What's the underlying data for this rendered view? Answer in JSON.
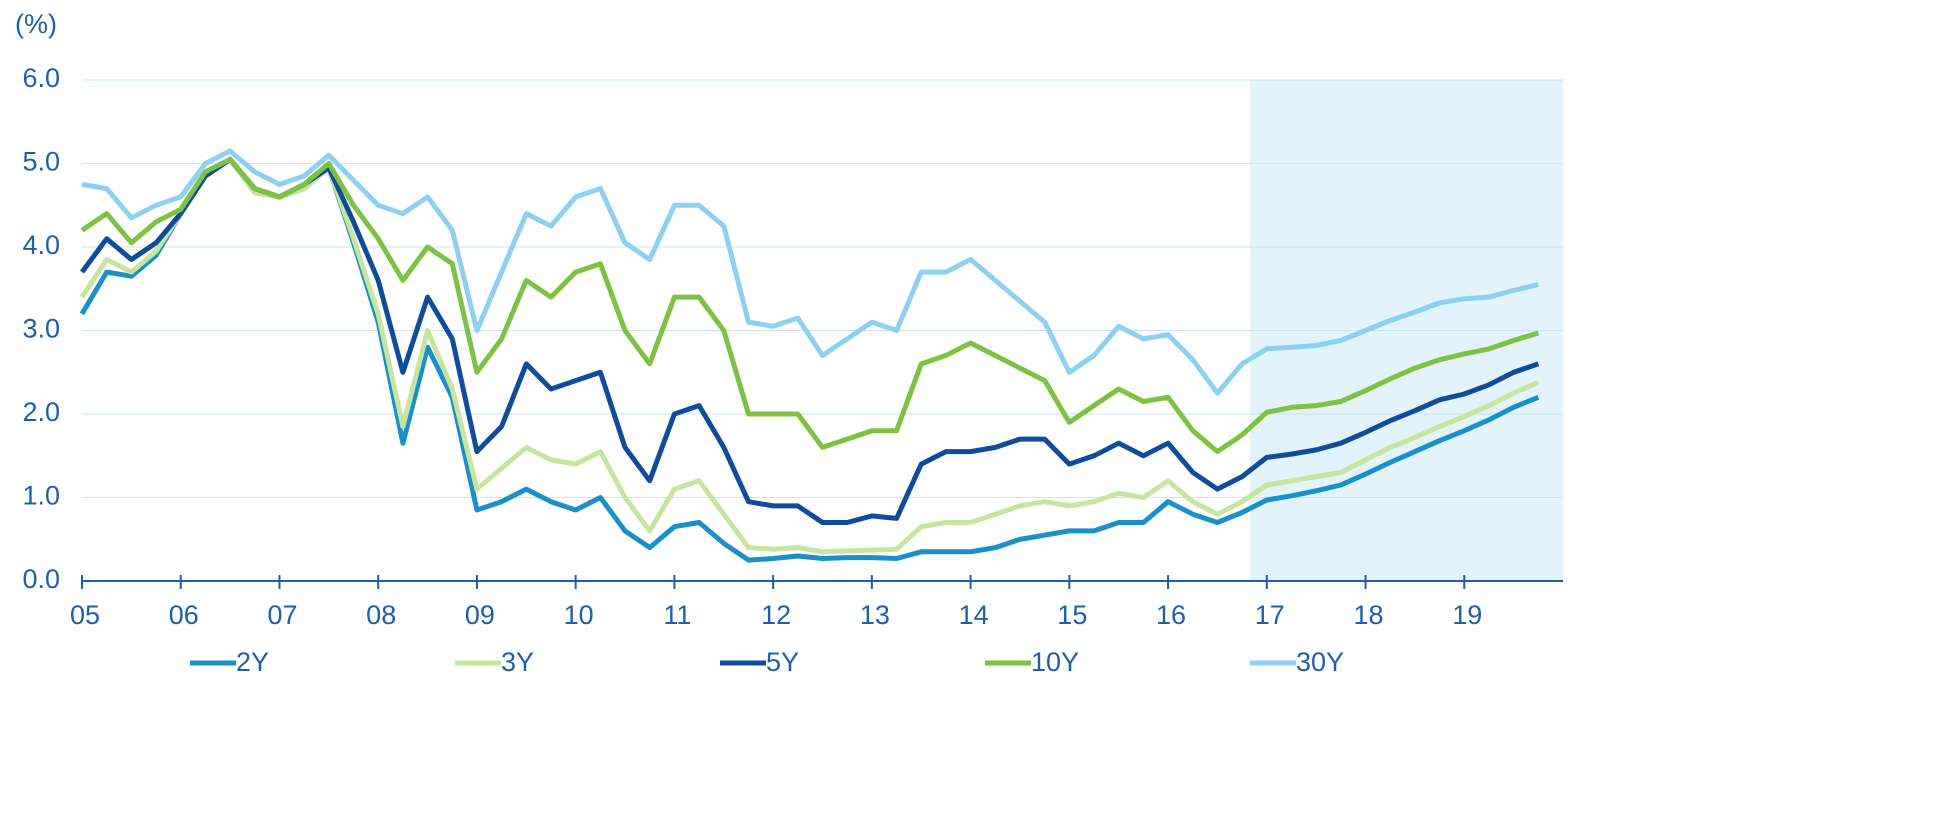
{
  "chart_data": {
    "type": "line",
    "ylabel": "(%)",
    "x": [
      2005,
      2005.25,
      2005.5,
      2005.75,
      2006,
      2006.25,
      2006.5,
      2006.75,
      2007,
      2007.25,
      2007.5,
      2007.75,
      2008,
      2008.25,
      2008.5,
      2008.75,
      2009,
      2009.25,
      2009.5,
      2009.75,
      2010,
      2010.25,
      2010.5,
      2010.75,
      2011,
      2011.25,
      2011.5,
      2011.75,
      2012,
      2012.25,
      2012.5,
      2012.75,
      2013,
      2013.25,
      2013.5,
      2013.75,
      2014,
      2014.25,
      2014.5,
      2014.75,
      2015,
      2015.25,
      2015.5,
      2015.75,
      2016,
      2016.25,
      2016.5,
      2016.75,
      2017,
      2017.25,
      2017.5,
      2017.75,
      2018,
      2018.25,
      2018.5,
      2018.75,
      2019,
      2019.25,
      2019.5,
      2019.75
    ],
    "series": [
      {
        "name": "2Y",
        "color": "#1b8fc9",
        "values": [
          3.2,
          3.7,
          3.65,
          3.9,
          4.4,
          4.85,
          5.05,
          4.65,
          4.6,
          4.7,
          4.95,
          4.05,
          3.1,
          1.65,
          2.8,
          2.2,
          0.85,
          0.95,
          1.1,
          0.95,
          0.85,
          1.0,
          0.6,
          0.4,
          0.65,
          0.7,
          0.45,
          0.25,
          0.27,
          0.3,
          0.27,
          0.28,
          0.28,
          0.27,
          0.35,
          0.35,
          0.35,
          0.4,
          0.5,
          0.55,
          0.6,
          0.6,
          0.7,
          0.7,
          0.95,
          0.8,
          0.7,
          0.82,
          0.97,
          1.02,
          1.08,
          1.15,
          1.28,
          1.42,
          1.55,
          1.68,
          1.8,
          1.93,
          2.08,
          2.2
        ]
      },
      {
        "name": "3Y",
        "color": "#c6e6a0",
        "values": [
          3.4,
          3.85,
          3.7,
          3.95,
          4.4,
          4.85,
          5.05,
          4.65,
          4.6,
          4.7,
          4.95,
          4.1,
          3.2,
          1.85,
          3.0,
          2.3,
          1.1,
          1.35,
          1.6,
          1.45,
          1.4,
          1.55,
          1.0,
          0.6,
          1.1,
          1.2,
          0.8,
          0.4,
          0.38,
          0.4,
          0.35,
          0.36,
          0.37,
          0.38,
          0.65,
          0.7,
          0.7,
          0.8,
          0.9,
          0.95,
          0.9,
          0.95,
          1.05,
          1.0,
          1.2,
          0.95,
          0.8,
          0.95,
          1.15,
          1.2,
          1.25,
          1.3,
          1.45,
          1.6,
          1.72,
          1.85,
          1.97,
          2.1,
          2.25,
          2.38
        ]
      },
      {
        "name": "5Y",
        "color": "#0f4c9a",
        "values": [
          3.7,
          4.1,
          3.85,
          4.05,
          4.4,
          4.85,
          5.05,
          4.7,
          4.6,
          4.75,
          4.95,
          4.3,
          3.6,
          2.5,
          3.4,
          2.9,
          1.55,
          1.85,
          2.6,
          2.3,
          2.4,
          2.5,
          1.6,
          1.2,
          2.0,
          2.1,
          1.6,
          0.95,
          0.9,
          0.9,
          0.7,
          0.7,
          0.78,
          0.75,
          1.4,
          1.55,
          1.55,
          1.6,
          1.7,
          1.7,
          1.4,
          1.5,
          1.65,
          1.5,
          1.65,
          1.3,
          1.1,
          1.25,
          1.48,
          1.52,
          1.57,
          1.65,
          1.78,
          1.92,
          2.04,
          2.17,
          2.24,
          2.35,
          2.5,
          2.6
        ]
      },
      {
        "name": "10Y",
        "color": "#7dc242",
        "values": [
          4.2,
          4.4,
          4.05,
          4.3,
          4.45,
          4.9,
          5.05,
          4.7,
          4.6,
          4.75,
          5.0,
          4.5,
          4.1,
          3.6,
          4.0,
          3.8,
          2.5,
          2.9,
          3.6,
          3.4,
          3.7,
          3.8,
          3.0,
          2.6,
          3.4,
          3.4,
          3.0,
          2.0,
          2.0,
          2.0,
          1.6,
          1.7,
          1.8,
          1.8,
          2.6,
          2.7,
          2.85,
          2.7,
          2.55,
          2.4,
          1.9,
          2.1,
          2.3,
          2.15,
          2.2,
          1.8,
          1.55,
          1.75,
          2.02,
          2.08,
          2.1,
          2.15,
          2.28,
          2.42,
          2.55,
          2.65,
          2.72,
          2.78,
          2.88,
          2.97
        ]
      },
      {
        "name": "30Y",
        "color": "#8ed0f0",
        "values": [
          4.75,
          4.7,
          4.35,
          4.5,
          4.6,
          5.0,
          5.15,
          4.9,
          4.75,
          4.85,
          5.1,
          4.8,
          4.5,
          4.4,
          4.6,
          4.2,
          3.0,
          3.7,
          4.4,
          4.25,
          4.6,
          4.7,
          4.05,
          3.85,
          4.5,
          4.5,
          4.25,
          3.1,
          3.05,
          3.15,
          2.7,
          2.9,
          3.1,
          3.0,
          3.7,
          3.7,
          3.85,
          3.6,
          3.35,
          3.1,
          2.5,
          2.7,
          3.05,
          2.9,
          2.95,
          2.65,
          2.25,
          2.6,
          2.78,
          2.8,
          2.82,
          2.88,
          3.0,
          3.12,
          3.22,
          3.33,
          3.38,
          3.4,
          3.48,
          3.55
        ]
      }
    ],
    "xlim": [
      2005,
      2020
    ],
    "xticks": [
      {
        "value": 2005,
        "label": "05"
      },
      {
        "value": 2006,
        "label": "06"
      },
      {
        "value": 2007,
        "label": "07"
      },
      {
        "value": 2008,
        "label": "08"
      },
      {
        "value": 2009,
        "label": "09"
      },
      {
        "value": 2010,
        "label": "10"
      },
      {
        "value": 2011,
        "label": "11"
      },
      {
        "value": 2012,
        "label": "12"
      },
      {
        "value": 2013,
        "label": "13"
      },
      {
        "value": 2014,
        "label": "14"
      },
      {
        "value": 2015,
        "label": "15"
      },
      {
        "value": 2016,
        "label": "16"
      },
      {
        "value": 2017,
        "label": "17"
      },
      {
        "value": 2018,
        "label": "18"
      },
      {
        "value": 2019,
        "label": "19"
      }
    ],
    "ylim": [
      0,
      6
    ],
    "yticks": [
      {
        "value": 0,
        "label": "0.0"
      },
      {
        "value": 1,
        "label": "1.0"
      },
      {
        "value": 2,
        "label": "2.0"
      },
      {
        "value": 3,
        "label": "3.0"
      },
      {
        "value": 4,
        "label": "4.0"
      },
      {
        "value": 5,
        "label": "5.0"
      },
      {
        "value": 6,
        "label": "6.0"
      }
    ],
    "grid": true,
    "shaded_xrange": [
      2016.83,
      2020
    ],
    "shade_color": "#e2f3fb",
    "legend": "bottom"
  }
}
